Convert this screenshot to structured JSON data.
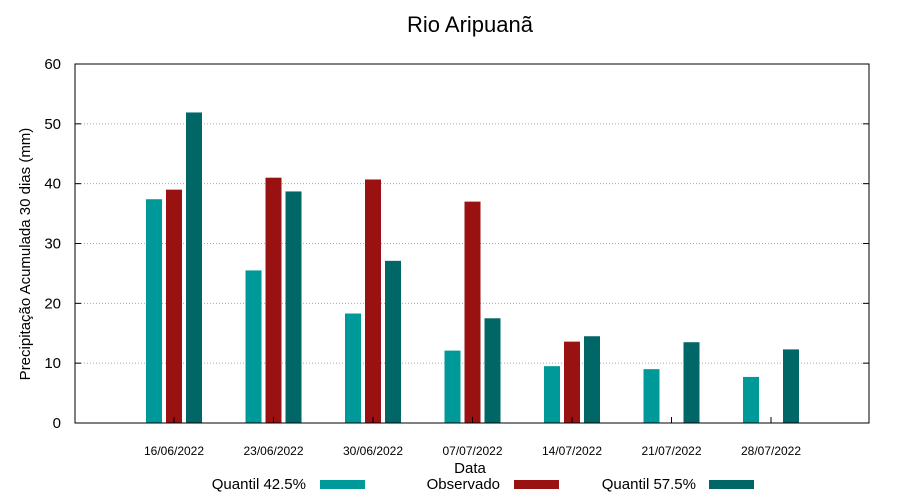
{
  "chart_data": {
    "type": "bar",
    "title": "Rio Aripuanã",
    "xlabel": "Data",
    "ylabel": "Precipitação Acumulada 30 dias (mm)",
    "ylim": [
      0,
      60
    ],
    "yticks": [
      0,
      10,
      20,
      30,
      40,
      50,
      60
    ],
    "grid": true,
    "legend_position": "bottom",
    "categories": [
      "16/06/2022",
      "23/06/2022",
      "30/06/2022",
      "07/07/2022",
      "14/07/2022",
      "21/07/2022",
      "28/07/2022"
    ],
    "series": [
      {
        "name": "Quantil 42.5%",
        "color": "#009999",
        "values": [
          37.4,
          25.5,
          18.3,
          12.1,
          9.5,
          9.0,
          7.7
        ]
      },
      {
        "name": "Observado",
        "color": "#991111",
        "values": [
          39.0,
          41.0,
          40.7,
          37.0,
          13.6,
          null,
          null
        ]
      },
      {
        "name": "Quantil 57.5%",
        "color": "#006666",
        "values": [
          51.9,
          38.7,
          27.1,
          17.5,
          14.5,
          13.5,
          12.3
        ]
      }
    ]
  }
}
